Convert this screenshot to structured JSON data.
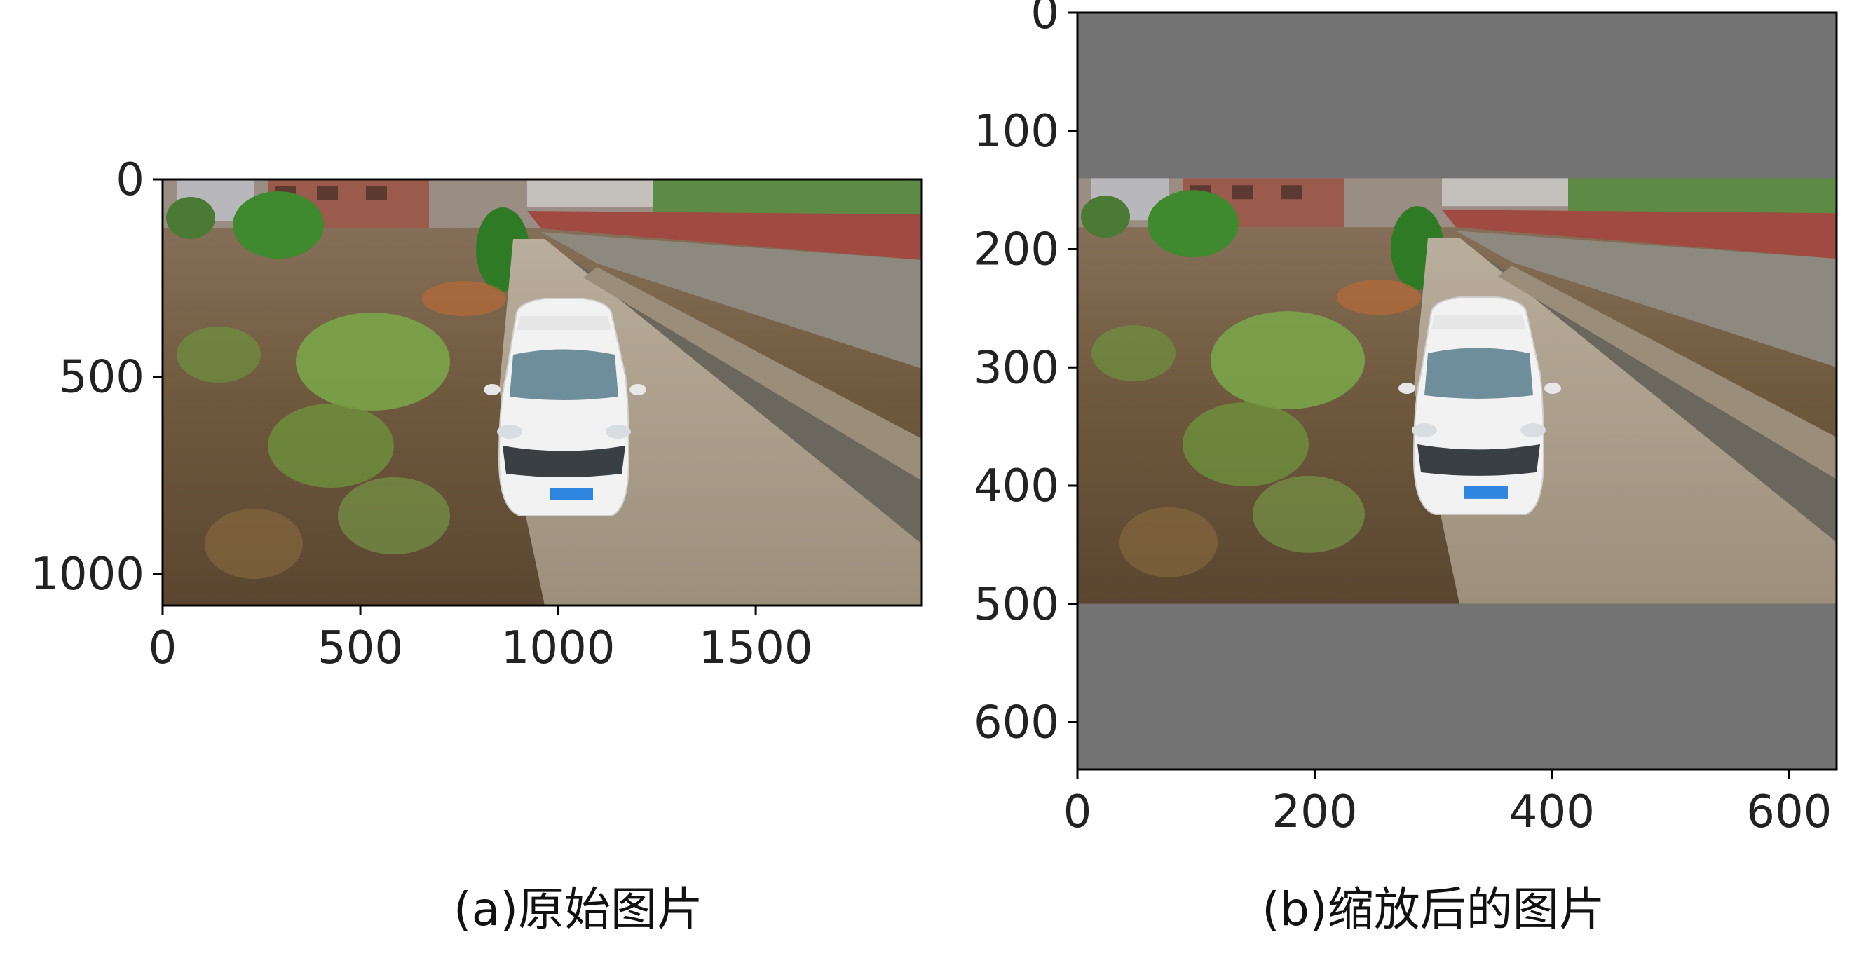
{
  "chart_data": [
    {
      "type": "image",
      "caption": "(a)原始图片",
      "image_description": "aerial photo of white car on dirt road between fields and stone wall",
      "x_ticks": [
        0,
        500,
        1000,
        1500
      ],
      "y_ticks": [
        0,
        500,
        1000
      ],
      "xlim": [
        0,
        1920
      ],
      "ylim": [
        1080,
        0
      ],
      "grid": false
    },
    {
      "type": "image",
      "caption": "(b)缩放后的图片",
      "image_description": "same photo resized to 640 wide, letterboxed with gray padding above and below",
      "x_ticks": [
        0,
        200,
        400,
        600
      ],
      "y_ticks": [
        0,
        100,
        200,
        300,
        400,
        500,
        600
      ],
      "xlim": [
        0,
        640
      ],
      "ylim": [
        640,
        0
      ],
      "content_rows": [
        140,
        500
      ],
      "padding_color": "#737373",
      "grid": false
    }
  ],
  "colors": {
    "sky_buildings": "#8a7a70",
    "field": "#6e5a40",
    "road": "#a89a86",
    "wall": "#7a776d",
    "grass": "#7aa84a",
    "car": "#f2f2f2"
  }
}
